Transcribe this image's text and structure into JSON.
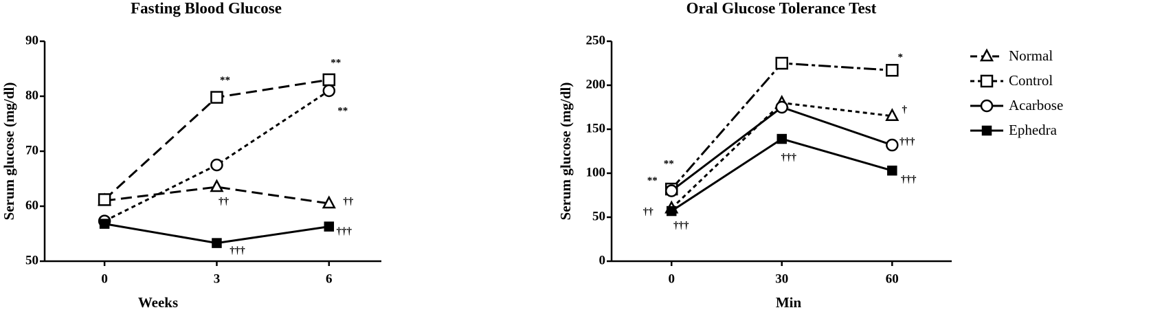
{
  "chart_data": [
    {
      "type": "line",
      "title": "Fasting Blood  Glucose",
      "x_label": "Weeks",
      "y_label": "Serum glucose  (mg/dl)",
      "x": [
        0,
        3,
        6
      ],
      "xlim": [
        -1.6,
        7.4
      ],
      "xticks": [
        0,
        3,
        6
      ],
      "ylim": [
        50,
        90
      ],
      "yticks": [
        50,
        60,
        70,
        80,
        90
      ],
      "series": [
        {
          "marker": "triangle",
          "line_style": "longdash",
          "color": "#000000",
          "values": [
            61,
            63.5,
            60.5
          ],
          "annotations": [
            null,
            "††",
            "††"
          ]
        },
        {
          "marker": "square",
          "line_style": "longdash",
          "color": "#000000",
          "values": [
            61.2,
            79.8,
            83
          ],
          "annotations": [
            null,
            "**",
            "**"
          ]
        },
        {
          "marker": "circle",
          "line_style": "dotted",
          "color": "#000000",
          "values": [
            57.3,
            67.5,
            81
          ],
          "annotations": [
            null,
            null,
            "**"
          ]
        },
        {
          "marker": "filled-square",
          "line_style": "solid",
          "color": "#000000",
          "values": [
            56.8,
            53.3,
            56.3
          ],
          "annotations": [
            null,
            "†††",
            "†††"
          ]
        }
      ]
    },
    {
      "type": "line",
      "title": "Oral Glucose Tolerance Test",
      "x_label": "Min",
      "y_label": "Serum glucose  (mg/dl)",
      "x": [
        0,
        30,
        60
      ],
      "xlim": [
        -16.3,
        76.2
      ],
      "xticks": [
        0,
        30,
        60
      ],
      "ylim": [
        0,
        250
      ],
      "yticks": [
        0,
        50,
        100,
        150,
        200,
        250
      ],
      "series": [
        {
          "marker": "triangle",
          "line_style": "dotted",
          "color": "#000000",
          "values": [
            60,
            180,
            165
          ],
          "annotations": [
            "††",
            null,
            "†"
          ]
        },
        {
          "marker": "square",
          "line_style": "dashdot",
          "color": "#000000",
          "values": [
            82,
            225,
            217
          ],
          "annotations": [
            "**",
            null,
            "*"
          ]
        },
        {
          "marker": "circle",
          "line_style": "solid",
          "color": "#000000",
          "values": [
            80,
            175,
            132
          ],
          "annotations": [
            "**",
            null,
            "†††"
          ]
        },
        {
          "marker": "filled-square",
          "line_style": "solid",
          "color": "#000000",
          "values": [
            57,
            139,
            103
          ],
          "annotations": [
            "†††",
            "†††",
            "†††"
          ]
        }
      ]
    }
  ],
  "legend": {
    "entries": [
      {
        "name": "Normal",
        "marker": "triangle",
        "line_style": "dashed"
      },
      {
        "name": "Control",
        "marker": "square",
        "line_style": "dotted"
      },
      {
        "name": "Acarbose",
        "marker": "circle",
        "line_style": "solid"
      },
      {
        "name": "Ephedra",
        "marker": "filled-square",
        "line_style": "solid"
      }
    ]
  }
}
